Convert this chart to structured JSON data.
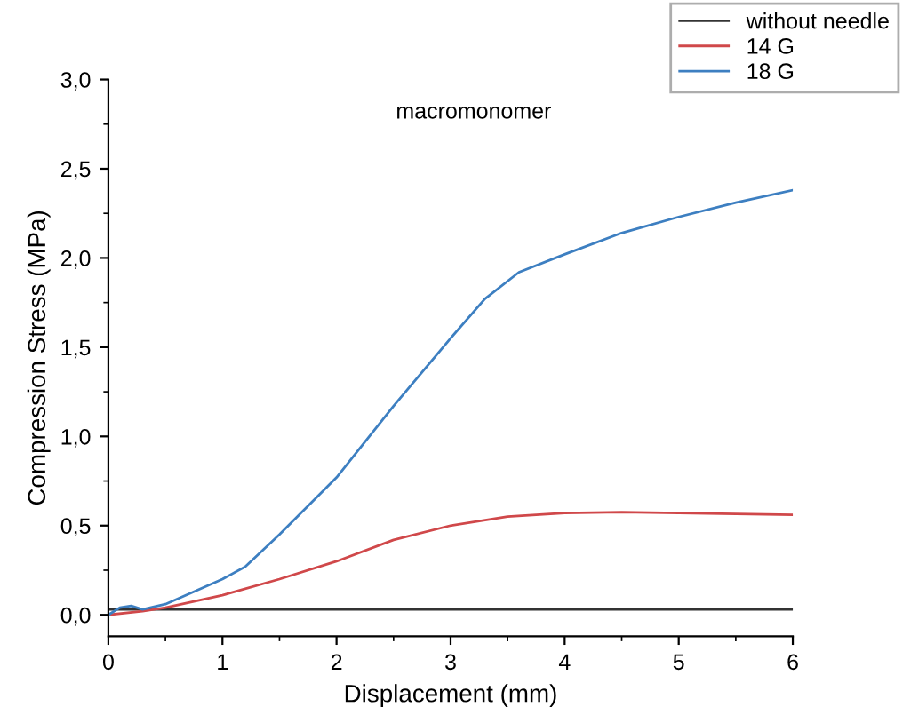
{
  "chart_data": {
    "type": "line",
    "xlabel": "Displacement (mm)",
    "ylabel": "Compression Stress (MPa)",
    "annotations": [
      "macromonomer"
    ],
    "xlim": [
      0,
      6
    ],
    "xticks": [
      0,
      1,
      2,
      3,
      4,
      5,
      6
    ],
    "ylim": [
      -0.12,
      3.0
    ],
    "yticks": [
      {
        "value": 0,
        "label": "0,0"
      },
      {
        "value": 0.5,
        "label": "0,5"
      },
      {
        "value": 1.0,
        "label": "1,0"
      },
      {
        "value": 1.5,
        "label": "1,5"
      },
      {
        "value": 2.0,
        "label": "2,0"
      },
      {
        "value": 2.5,
        "label": "2,5"
      },
      {
        "value": 3.0,
        "label": "3,0"
      }
    ],
    "grid": false,
    "legend": "top right",
    "marker": "none",
    "line_style": "solid",
    "series": [
      {
        "name": "without needle",
        "color": "#333333",
        "x": [
          0,
          6
        ],
        "values": [
          0.03,
          0.03
        ]
      },
      {
        "name": "14 G",
        "color": "#d0484a",
        "x": [
          0,
          0.3,
          0.5,
          1.0,
          1.5,
          2.0,
          2.5,
          3.0,
          3.5,
          4.0,
          4.5,
          5.0,
          5.5,
          6.0
        ],
        "values": [
          0,
          0.02,
          0.04,
          0.11,
          0.2,
          0.3,
          0.42,
          0.5,
          0.55,
          0.57,
          0.575,
          0.57,
          0.565,
          0.56
        ]
      },
      {
        "name": "18 G",
        "color": "#3d7fc1",
        "x": [
          0,
          0.1,
          0.2,
          0.3,
          0.5,
          1.0,
          1.2,
          1.5,
          2.0,
          2.5,
          3.0,
          3.3,
          3.6,
          4.0,
          4.5,
          5.0,
          5.5,
          6.0
        ],
        "values": [
          0,
          0.04,
          0.05,
          0.03,
          0.06,
          0.2,
          0.27,
          0.45,
          0.77,
          1.17,
          1.55,
          1.77,
          1.92,
          2.02,
          2.14,
          2.23,
          2.31,
          2.38
        ]
      }
    ]
  }
}
